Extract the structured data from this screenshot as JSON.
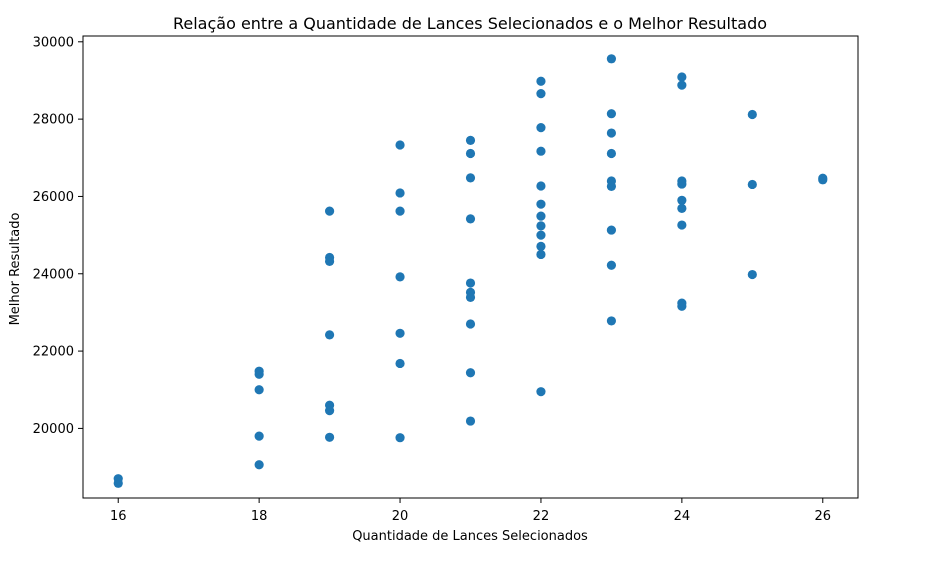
{
  "chart_data": {
    "type": "scatter",
    "title": "Relação entre a Quantidade de Lances Selecionados e o Melhor Resultado",
    "xlabel": "Quantidade de Lances Selecionados",
    "ylabel": "Melhor Resultado",
    "xlim": [
      15.5,
      26.5
    ],
    "ylim": [
      18200,
      30150
    ],
    "xticks": [
      16,
      18,
      20,
      22,
      24,
      26
    ],
    "yticks": [
      20000,
      22000,
      24000,
      26000,
      28000,
      30000
    ],
    "grid": false,
    "marker_color": "#1f77b4",
    "points": [
      {
        "x": 16,
        "y": 18700
      },
      {
        "x": 16,
        "y": 18580
      },
      {
        "x": 18,
        "y": 21480
      },
      {
        "x": 18,
        "y": 21400
      },
      {
        "x": 18,
        "y": 21000
      },
      {
        "x": 18,
        "y": 19800
      },
      {
        "x": 18,
        "y": 19060
      },
      {
        "x": 19,
        "y": 25620
      },
      {
        "x": 19,
        "y": 24420
      },
      {
        "x": 19,
        "y": 24320
      },
      {
        "x": 19,
        "y": 22420
      },
      {
        "x": 19,
        "y": 20600
      },
      {
        "x": 19,
        "y": 20460
      },
      {
        "x": 19,
        "y": 19770
      },
      {
        "x": 20,
        "y": 27330
      },
      {
        "x": 20,
        "y": 26090
      },
      {
        "x": 20,
        "y": 25620
      },
      {
        "x": 20,
        "y": 23920
      },
      {
        "x": 20,
        "y": 22460
      },
      {
        "x": 20,
        "y": 21680
      },
      {
        "x": 20,
        "y": 19760
      },
      {
        "x": 21,
        "y": 27450
      },
      {
        "x": 21,
        "y": 27110
      },
      {
        "x": 21,
        "y": 26480
      },
      {
        "x": 21,
        "y": 25420
      },
      {
        "x": 21,
        "y": 23760
      },
      {
        "x": 21,
        "y": 23520
      },
      {
        "x": 21,
        "y": 23390
      },
      {
        "x": 21,
        "y": 22700
      },
      {
        "x": 21,
        "y": 21440
      },
      {
        "x": 21,
        "y": 20190
      },
      {
        "x": 22,
        "y": 28980
      },
      {
        "x": 22,
        "y": 28660
      },
      {
        "x": 22,
        "y": 27780
      },
      {
        "x": 22,
        "y": 27170
      },
      {
        "x": 22,
        "y": 26270
      },
      {
        "x": 22,
        "y": 25800
      },
      {
        "x": 22,
        "y": 25490
      },
      {
        "x": 22,
        "y": 25240
      },
      {
        "x": 22,
        "y": 25000
      },
      {
        "x": 22,
        "y": 24710
      },
      {
        "x": 22,
        "y": 24500
      },
      {
        "x": 22,
        "y": 20950
      },
      {
        "x": 23,
        "y": 29560
      },
      {
        "x": 23,
        "y": 28140
      },
      {
        "x": 23,
        "y": 27640
      },
      {
        "x": 23,
        "y": 27110
      },
      {
        "x": 23,
        "y": 26400
      },
      {
        "x": 23,
        "y": 26260
      },
      {
        "x": 23,
        "y": 25130
      },
      {
        "x": 23,
        "y": 24220
      },
      {
        "x": 23,
        "y": 22780
      },
      {
        "x": 24,
        "y": 29090
      },
      {
        "x": 24,
        "y": 28880
      },
      {
        "x": 24,
        "y": 26400
      },
      {
        "x": 24,
        "y": 26320
      },
      {
        "x": 24,
        "y": 25900
      },
      {
        "x": 24,
        "y": 25690
      },
      {
        "x": 24,
        "y": 25260
      },
      {
        "x": 24,
        "y": 23240
      },
      {
        "x": 24,
        "y": 23160
      },
      {
        "x": 25,
        "y": 28120
      },
      {
        "x": 25,
        "y": 26310
      },
      {
        "x": 25,
        "y": 23980
      },
      {
        "x": 26,
        "y": 26470
      },
      {
        "x": 26,
        "y": 26430
      }
    ]
  }
}
